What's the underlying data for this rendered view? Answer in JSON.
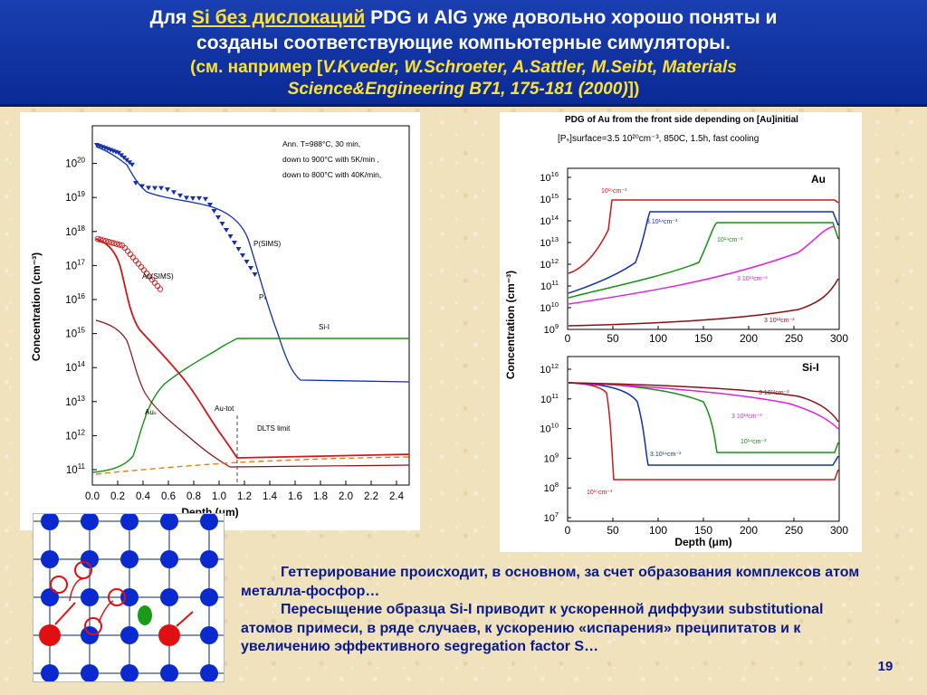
{
  "header": {
    "line1_pre": "Для ",
    "line1_u": "Si без дислокаций",
    "line1_post": " PDG и AlG уже довольно хорошо поняты и",
    "line2": "созданы соответствующие компьютерные симуляторы.",
    "line3_pre": "(см. например [",
    "line3_it": "V.Kveder, W.Schroeter, A.Sattler, M.Seibt, Materials",
    "line4_it": "Science&Engineering B71, 175-181 (2000)",
    "line4_post": "])"
  },
  "left_chart": {
    "xlabel": "Depth (μm)",
    "ylabel": "Concentration (cm⁻³)",
    "xticks": [
      "0.0",
      "0.2",
      "0.4",
      "0.6",
      "0.8",
      "1.0",
      "1.2",
      "1.4",
      "1.6",
      "1.8",
      "2.0",
      "2.2",
      "2.4"
    ],
    "yticks_exp": [
      "11",
      "12",
      "13",
      "14",
      "15",
      "16",
      "17",
      "18",
      "19",
      "20"
    ],
    "ytick_base": "10",
    "annot1": "Ann. T=988°C, 30 min,",
    "annot2": "down to 900°C with 5K/min ,",
    "annot3": "down to 800°C with 40K/min,",
    "lbl_psims": "P(SIMS)",
    "lbl_ps": "Pₛ",
    "lbl_sii": "Si-I",
    "lbl_ausims": "Au(SIMS)",
    "lbl_aus": "Auₛ",
    "lbl_autot": "Au-tot",
    "lbl_dlts": "DLTS limit"
  },
  "right_chart": {
    "title": "PDG of Au from the front side depending on [Au]initial",
    "subtitle": "[Pₛ]surface=3.5 10²⁰cm⁻³, 850C, 1.5h, fast cooling",
    "xlabel": "Depth (μm)",
    "ylabel": "Concentration (cm⁻³)",
    "xticks": [
      "0",
      "50",
      "100",
      "150",
      "200",
      "250",
      "300"
    ],
    "top_yticks_exp": [
      "9",
      "10",
      "11",
      "12",
      "13",
      "14",
      "15",
      "16"
    ],
    "bot_yticks_exp": [
      "7",
      "8",
      "9",
      "10",
      "11",
      "12"
    ],
    "ytick_base": "10",
    "top_label": "Au",
    "bot_label": "Si-I",
    "top_curve_labels": [
      "10¹⁵cm⁻³",
      "3.10¹⁴cm⁻³",
      "10¹⁴cm⁻³",
      "3 10¹³cm⁻³",
      "3 10¹²cm⁻³"
    ],
    "bot_curve_labels": [
      "3 10¹²cm⁻³",
      "3 10¹³cm⁻³",
      "10¹⁴cm⁻³",
      "3.10¹⁴cm⁻³",
      "10¹⁵cm⁻³"
    ]
  },
  "body": {
    "p1": "Геттерирование происходит, в основном, за счет образования комплексов атом металла-фосфор…",
    "p2": "Пересыщение образца  Si-I приводит к ускоренной диффузии substitutional атомов примеси, в ряде случаев, к  ускорению «испарения» преципитатов и к увеличению эффективного segregation factor S…"
  },
  "slide_number": "19",
  "colors": {
    "header_bg": "#0a2a95",
    "header_text": "#ffffff",
    "header_highlight": "#ffe033",
    "body_text": "#0b1a8a",
    "curve_red": "#d01818",
    "curve_blue": "#1030b0",
    "curve_green": "#139413",
    "curve_magenta": "#e020e0",
    "curve_brown": "#8a1010",
    "curve_orange": "#e08010"
  }
}
